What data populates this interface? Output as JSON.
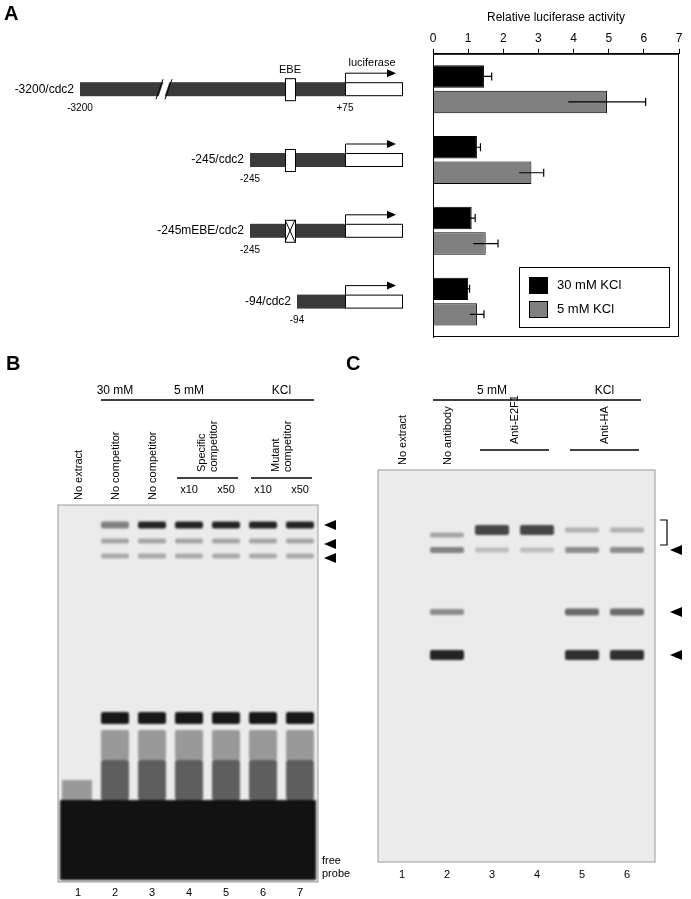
{
  "chart_data": {
    "type": "bar",
    "orientation": "horizontal",
    "x_label": "Relative luciferase activity",
    "categories": [
      "-3200/cdc2",
      "-245/cdc2",
      "-245mEBE/cdc2",
      "-94/cdc2"
    ],
    "series": [
      {
        "name": "30 mM KCl",
        "color": "#000000",
        "values": [
          1.45,
          1.25,
          1.1,
          1.0
        ],
        "errors": [
          0.22,
          0.1,
          0.1,
          0.04
        ]
      },
      {
        "name": "5 mM KCl",
        "color": "#808080",
        "values": [
          4.95,
          2.8,
          1.5,
          1.25
        ],
        "errors": [
          1.1,
          0.35,
          0.35,
          0.2
        ]
      }
    ],
    "xlim": [
      0,
      7
    ],
    "xticks": [
      0,
      1,
      2,
      3,
      4,
      5,
      6,
      7
    ],
    "grid": false,
    "legend": "lower right",
    "tick_labels": "x"
  },
  "panel_a": {
    "label": "A",
    "diagram": {
      "element_label": "EBE",
      "reporter_label": "luciferase",
      "rows": [
        {
          "start": "-3200",
          "end": "+75",
          "break": true,
          "ebe": true,
          "ebe_mutated": false
        },
        {
          "start": "-245",
          "break": false,
          "ebe": true,
          "ebe_mutated": false
        },
        {
          "start": "-245",
          "break": false,
          "ebe": true,
          "ebe_mutated": true
        },
        {
          "start": "-94",
          "break": false,
          "ebe": false,
          "ebe_mutated": false
        }
      ]
    }
  },
  "panel_b": {
    "label": "B",
    "header": [
      {
        "text": "30 mM",
        "lanes": [
          2,
          2
        ]
      },
      {
        "text": "5 mM",
        "lanes": [
          3,
          5
        ]
      },
      {
        "text": "KCl",
        "lanes": [
          6,
          7
        ]
      }
    ],
    "lane_labels": [
      {
        "text": "No extract",
        "lanes": [
          1,
          1
        ]
      },
      {
        "text": "No competitor",
        "lanes": [
          2,
          2
        ]
      },
      {
        "text": "No competitor",
        "lanes": [
          3,
          3
        ]
      },
      {
        "text": "Specific competitor",
        "lanes": [
          4,
          5
        ]
      },
      {
        "text": "Mutant competitor",
        "lanes": [
          6,
          7
        ]
      }
    ],
    "sub_labels": [
      {
        "text": "x10",
        "lane": 4
      },
      {
        "text": "x50",
        "lane": 5
      },
      {
        "text": "x10",
        "lane": 6
      },
      {
        "text": "x50",
        "lane": 7
      }
    ],
    "lanes": [
      1,
      2,
      3,
      4,
      5,
      6,
      7
    ],
    "free_probe": "free probe"
  },
  "panel_c": {
    "label": "C",
    "header": [
      {
        "text": "5 mM",
        "lanes": [
          2,
          4
        ]
      },
      {
        "text": "KCl",
        "lanes": [
          5,
          6
        ]
      }
    ],
    "lane_labels": [
      {
        "text": "No extract",
        "lanes": [
          1,
          1
        ]
      },
      {
        "text": "No antibody",
        "lanes": [
          2,
          2
        ]
      },
      {
        "text": "Anti-E2F1",
        "lanes": [
          3,
          4
        ]
      },
      {
        "text": "Anti-HA",
        "lanes": [
          5,
          6
        ]
      }
    ],
    "lanes": [
      1,
      2,
      3,
      4,
      5,
      6
    ]
  }
}
